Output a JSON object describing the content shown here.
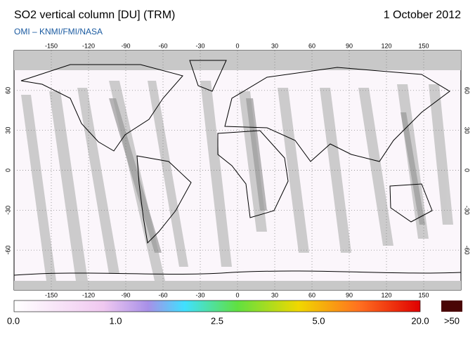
{
  "header": {
    "title": "SO2 vertical column [DU] (TRM)",
    "date": "1 October 2012",
    "subtitle": "OMI  –  KNMI/FMI/NASA"
  },
  "map": {
    "lonlim": [
      -180,
      180
    ],
    "latlim": [
      -90,
      90
    ],
    "lon_ticks": [
      -150,
      -120,
      -90,
      -60,
      -30,
      0,
      30,
      60,
      90,
      120,
      150
    ],
    "lat_ticks": [
      60,
      30,
      0,
      -30,
      -60
    ]
  },
  "colorbar": {
    "labels": [
      "0.0",
      "1.0",
      "2.5",
      "5.0",
      "20.0"
    ],
    "overflow_label": ">50"
  }
}
